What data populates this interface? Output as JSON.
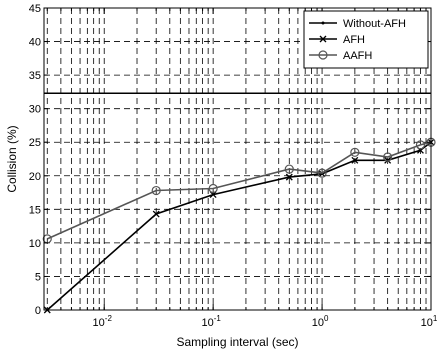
{
  "chart_data": {
    "type": "line",
    "title": "",
    "xlabel": "Sampling interval (sec)",
    "ylabel": "Collision (%)",
    "xscale": "log",
    "xlim": [
      0.0028,
      10
    ],
    "ylim": [
      0,
      45
    ],
    "yticks": [
      0,
      5,
      10,
      15,
      20,
      25,
      30,
      35,
      40,
      45
    ],
    "xticks": [
      {
        "value": 0.01,
        "base": "10",
        "exp": "-2"
      },
      {
        "value": 0.1,
        "base": "10",
        "exp": "-1"
      },
      {
        "value": 1,
        "base": "10",
        "exp": "0"
      },
      {
        "value": 10,
        "base": "10",
        "exp": "1"
      }
    ],
    "grid": true,
    "legend_position": "top-right",
    "series": [
      {
        "name": "Without-AFH",
        "color": "#000000",
        "marker": "point",
        "x": [
          0.0028,
          10
        ],
        "y": [
          32.3,
          32.3
        ]
      },
      {
        "name": "AFH",
        "color": "#000000",
        "marker": "x",
        "x": [
          0.003,
          0.03,
          0.1,
          0.5,
          1,
          2,
          4,
          8,
          10
        ],
        "y": [
          0,
          14.3,
          17.2,
          19.8,
          20.3,
          22.3,
          22.3,
          23.8,
          25
        ]
      },
      {
        "name": "AAFH",
        "color": "#555555",
        "marker": "circle",
        "x": [
          0.003,
          0.03,
          0.1,
          0.5,
          1,
          2,
          4,
          8,
          10
        ],
        "y": [
          10.6,
          17.8,
          18.1,
          21,
          20.4,
          23.5,
          22.8,
          24.6,
          25
        ]
      }
    ]
  }
}
